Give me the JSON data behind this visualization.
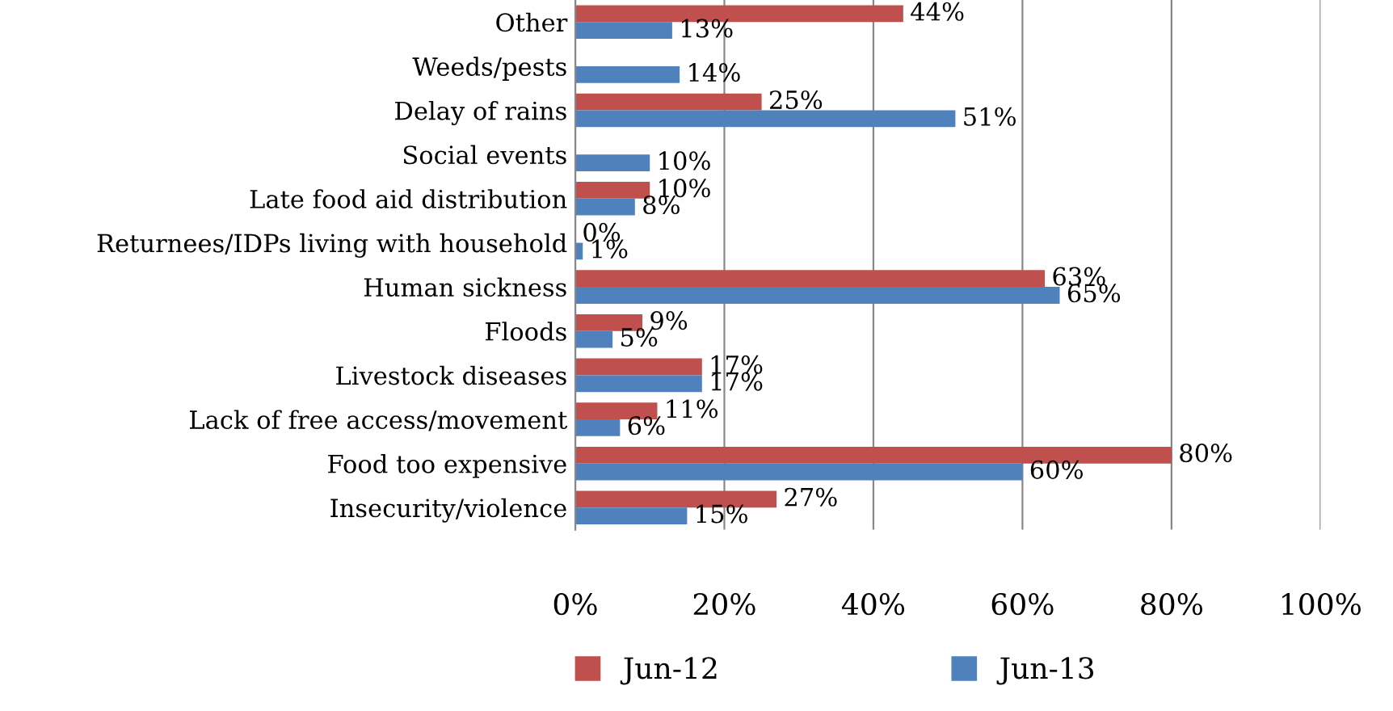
{
  "chart_data": {
    "type": "bar",
    "orientation": "horizontal",
    "categories": [
      "Other",
      "Weeds/pests",
      "Delay of rains",
      "Social events",
      "Late food aid distribution",
      "Returnees/IDPs living with household",
      "Human sickness",
      "Floods",
      "Livestock diseases",
      "Lack of free access/movement",
      "Food too expensive",
      "Insecurity/violence"
    ],
    "series": [
      {
        "name": "Jun-12",
        "color": "#c0504d",
        "values": [
          44,
          null,
          25,
          null,
          10,
          0,
          63,
          9,
          17,
          11,
          80,
          27
        ],
        "value_labels": [
          "44%",
          null,
          "25%",
          null,
          "10%",
          "0%",
          "63%",
          "9%",
          "17%",
          "11%",
          "80%",
          "27%"
        ]
      },
      {
        "name": "Jun-13",
        "color": "#4f81bd",
        "values": [
          13,
          14,
          51,
          10,
          8,
          1,
          65,
          5,
          17,
          6,
          60,
          15
        ],
        "value_labels": [
          "13%",
          "14%",
          "51%",
          "10%",
          "8%",
          "1%",
          "65%",
          "5%",
          "17%",
          "6%",
          "60%",
          "15%"
        ]
      }
    ],
    "xlim": [
      0,
      100
    ],
    "xticks": [
      {
        "value": 0,
        "label": "0%"
      },
      {
        "value": 20,
        "label": "20%"
      },
      {
        "value": 40,
        "label": "40%"
      },
      {
        "value": 60,
        "label": "60%"
      },
      {
        "value": 80,
        "label": "80%"
      },
      {
        "value": 100,
        "label": "100%"
      }
    ],
    "grid": "x",
    "legend": "bottom"
  }
}
